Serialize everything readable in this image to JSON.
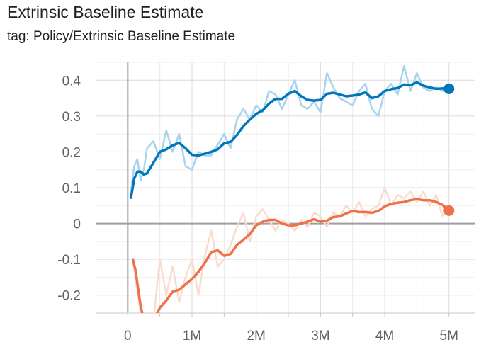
{
  "title": "Extrinsic Baseline Estimate",
  "subtitle": "tag: Policy/Extrinsic Baseline Estimate",
  "chart_data": {
    "type": "line",
    "title": "Extrinsic Baseline Estimate",
    "xlabel": "",
    "ylabel": "",
    "xlim": [
      -0.5,
      5.4
    ],
    "ylim": [
      -0.25,
      0.45
    ],
    "grid": true,
    "x_ticks": [
      {
        "value": 0,
        "label": "0"
      },
      {
        "value": 1,
        "label": "1M"
      },
      {
        "value": 2,
        "label": "2M"
      },
      {
        "value": 3,
        "label": "3M"
      },
      {
        "value": 4,
        "label": "4M"
      },
      {
        "value": 5,
        "label": "5M"
      }
    ],
    "y_ticks": [
      {
        "value": 0.4,
        "label": "0.4"
      },
      {
        "value": 0.3,
        "label": "0.3"
      },
      {
        "value": 0.2,
        "label": "0.2"
      },
      {
        "value": 0.1,
        "label": "0.1"
      },
      {
        "value": 0,
        "label": "0"
      },
      {
        "value": -0.1,
        "label": "-0.1"
      },
      {
        "value": -0.2,
        "label": "-0.2"
      }
    ],
    "series": [
      {
        "color": "#0077bb",
        "raw_color": "#a8d3ee",
        "x": [
          0.05,
          0.1,
          0.15,
          0.2,
          0.25,
          0.3,
          0.4,
          0.5,
          0.6,
          0.7,
          0.8,
          0.9,
          1.0,
          1.1,
          1.2,
          1.3,
          1.4,
          1.5,
          1.6,
          1.7,
          1.8,
          1.9,
          2.0,
          2.1,
          2.2,
          2.3,
          2.4,
          2.5,
          2.6,
          2.7,
          2.8,
          2.9,
          3.0,
          3.1,
          3.2,
          3.3,
          3.4,
          3.5,
          3.6,
          3.7,
          3.8,
          3.9,
          4.0,
          4.1,
          4.2,
          4.3,
          4.4,
          4.5,
          4.6,
          4.7,
          4.8,
          4.9,
          5.0
        ],
        "values": [
          0.072,
          0.125,
          0.145,
          0.145,
          0.137,
          0.14,
          0.17,
          0.2,
          0.207,
          0.218,
          0.225,
          0.21,
          0.192,
          0.19,
          0.195,
          0.2,
          0.207,
          0.224,
          0.228,
          0.247,
          0.272,
          0.29,
          0.306,
          0.316,
          0.335,
          0.348,
          0.348,
          0.362,
          0.37,
          0.355,
          0.345,
          0.343,
          0.345,
          0.362,
          0.365,
          0.36,
          0.355,
          0.357,
          0.36,
          0.366,
          0.35,
          0.355,
          0.37,
          0.375,
          0.378,
          0.388,
          0.386,
          0.394,
          0.385,
          0.38,
          0.376,
          0.377,
          0.376
        ],
        "raw_values": [
          0.09,
          0.16,
          0.18,
          0.12,
          0.15,
          0.21,
          0.23,
          0.18,
          0.26,
          0.2,
          0.25,
          0.16,
          0.15,
          0.2,
          0.19,
          0.19,
          0.22,
          0.25,
          0.21,
          0.29,
          0.32,
          0.29,
          0.33,
          0.31,
          0.37,
          0.36,
          0.32,
          0.36,
          0.4,
          0.33,
          0.32,
          0.34,
          0.31,
          0.42,
          0.38,
          0.35,
          0.34,
          0.33,
          0.37,
          0.39,
          0.32,
          0.3,
          0.37,
          0.39,
          0.36,
          0.44,
          0.37,
          0.42,
          0.38,
          0.37,
          0.38,
          0.37,
          0.37
        ]
      },
      {
        "color": "#ee7148",
        "raw_color": "#fadccf",
        "x": [
          0.08,
          0.12,
          0.16,
          0.2,
          0.25,
          0.4,
          0.5,
          0.6,
          0.7,
          0.8,
          0.9,
          1.0,
          1.1,
          1.2,
          1.3,
          1.4,
          1.5,
          1.6,
          1.7,
          1.8,
          1.9,
          2.0,
          2.1,
          2.2,
          2.3,
          2.4,
          2.5,
          2.6,
          2.7,
          2.8,
          2.9,
          3.0,
          3.1,
          3.2,
          3.3,
          3.4,
          3.5,
          3.6,
          3.7,
          3.8,
          3.9,
          4.0,
          4.1,
          4.2,
          4.3,
          4.4,
          4.5,
          4.6,
          4.7,
          4.8,
          4.9,
          5.0
        ],
        "values": [
          -0.1,
          -0.13,
          -0.18,
          -0.23,
          -0.27,
          -0.27,
          -0.235,
          -0.215,
          -0.19,
          -0.185,
          -0.17,
          -0.155,
          -0.135,
          -0.11,
          -0.08,
          -0.075,
          -0.09,
          -0.085,
          -0.06,
          -0.045,
          -0.03,
          -0.005,
          0.005,
          0.01,
          0.01,
          0.0,
          -0.005,
          -0.005,
          0.0,
          0.005,
          0.012,
          0.005,
          0.008,
          0.018,
          0.02,
          0.028,
          0.035,
          0.032,
          0.032,
          0.03,
          0.035,
          0.048,
          0.055,
          0.058,
          0.06,
          0.065,
          0.068,
          0.065,
          0.065,
          0.06,
          0.052,
          0.036
        ],
        "raw_values": [
          -0.1,
          -0.15,
          -0.2,
          -0.25,
          -0.27,
          -0.27,
          -0.1,
          -0.2,
          -0.12,
          -0.22,
          -0.15,
          -0.1,
          -0.2,
          -0.09,
          -0.02,
          -0.12,
          -0.1,
          -0.06,
          -0.01,
          0.03,
          -0.05,
          0.02,
          0.04,
          0.01,
          -0.02,
          0.01,
          0.0,
          -0.02,
          0.01,
          -0.01,
          0.03,
          0.02,
          -0.01,
          0.03,
          0.02,
          0.05,
          0.03,
          0.06,
          0.02,
          0.04,
          0.05,
          0.1,
          0.05,
          0.08,
          0.07,
          0.09,
          0.06,
          0.09,
          0.05,
          0.08,
          0.02,
          0.04
        ]
      }
    ]
  }
}
